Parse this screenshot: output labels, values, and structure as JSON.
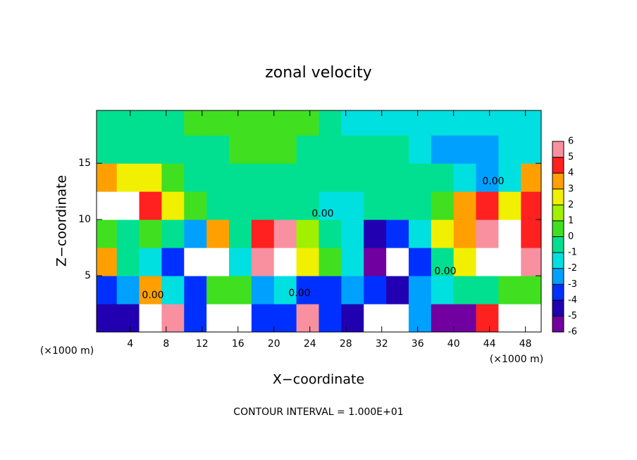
{
  "chart_data": {
    "type": "heatmap",
    "title": "zonal velocity",
    "x_label": "X−coordinate",
    "y_label": "Z−coordinate",
    "x_unit": "(×1000 m)",
    "y_unit": "(×1000 m)",
    "note": "CONTOUR INTERVAL = 1.000E+01",
    "contour_labels": [
      "0.00",
      "0.00",
      "0.00",
      "0.00",
      "0.00"
    ],
    "xlim": [
      0.25,
      49.75
    ],
    "ylim": [
      0,
      19.7
    ],
    "xticks": [
      4,
      8,
      12,
      16,
      20,
      24,
      28,
      32,
      36,
      40,
      44,
      48
    ],
    "yticks": [
      5,
      10,
      15
    ],
    "x": [
      1.25,
      3.75,
      6.25,
      8.75,
      11.25,
      13.75,
      16.25,
      18.75,
      21.25,
      23.75,
      26.25,
      28.75,
      31.25,
      33.75,
      36.25,
      38.75,
      41.25,
      43.75,
      46.25,
      48.75
    ],
    "y": [
      1.25,
      3.75,
      6.25,
      8.75,
      11.25,
      13.75,
      16.25,
      18.75
    ],
    "z": [
      [
        -4,
        -4,
        7,
        6,
        -3,
        7,
        7,
        -3,
        -3,
        6,
        -3,
        -4,
        7,
        7,
        -2,
        -5,
        -5,
        5,
        7,
        7
      ],
      [
        -3,
        -2,
        4,
        -1,
        -3,
        1,
        1,
        -2,
        -1,
        -3,
        -3,
        -2,
        -3,
        -4,
        -2,
        -1,
        0,
        0,
        1,
        1
      ],
      [
        4,
        0,
        -1,
        -3,
        7,
        7,
        -1,
        6,
        7,
        3,
        1,
        -1,
        -5,
        7,
        -3,
        0,
        3,
        7,
        7,
        6
      ],
      [
        1,
        0,
        1,
        0,
        -2,
        4,
        0,
        5,
        6,
        2,
        0,
        -1,
        -4,
        -3,
        -1,
        3,
        4,
        6,
        7,
        5
      ],
      [
        7,
        7,
        5,
        3,
        1,
        0,
        0,
        0,
        0,
        0,
        -1,
        -1,
        0,
        0,
        0,
        1,
        4,
        5,
        3,
        5
      ],
      [
        4,
        3,
        3,
        1,
        0,
        0,
        0,
        0,
        0,
        0,
        0,
        0,
        0,
        0,
        0,
        0,
        -1,
        -2,
        -1,
        4
      ],
      [
        0,
        0,
        0,
        0,
        0,
        0,
        1,
        1,
        1,
        0,
        0,
        0,
        0,
        0,
        -1,
        -2,
        -2,
        -2,
        -1,
        -1
      ],
      [
        0,
        0,
        0,
        0,
        1,
        1,
        1,
        1,
        1,
        1,
        0,
        -1,
        -1,
        -1,
        -1,
        -1,
        -1,
        -1,
        -1,
        -1
      ]
    ],
    "levels": [
      -6,
      -5,
      -4,
      -3,
      -2,
      -1,
      0,
      1,
      2,
      3,
      4,
      5,
      6
    ],
    "colors": [
      "#7000a0",
      "#2000b0",
      "#0030ff",
      "#00a0ff",
      "#00e0e0",
      "#00e090",
      "#40e020",
      "#a0f000",
      "#f0f000",
      "#ffa000",
      "#ff2020",
      "#f890a0"
    ],
    "out_of_range_color": "#ffffff"
  }
}
